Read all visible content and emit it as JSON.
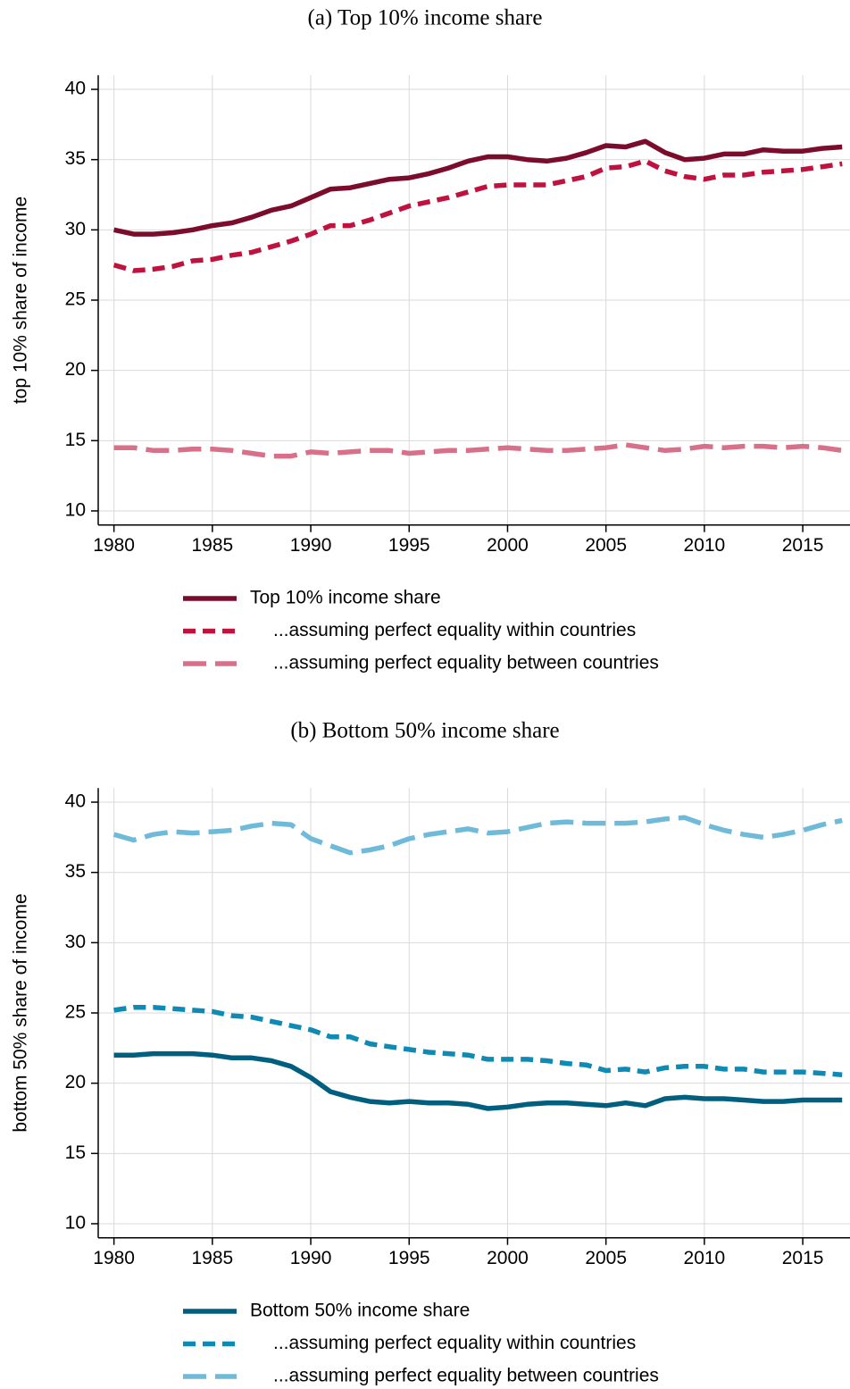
{
  "chart_data": [
    {
      "type": "line",
      "title": "(a) Top 10% income share",
      "y_label": "top 10% share of income",
      "x": [
        1980,
        1981,
        1982,
        1983,
        1984,
        1985,
        1986,
        1987,
        1988,
        1989,
        1990,
        1991,
        1992,
        1993,
        1994,
        1995,
        1996,
        1997,
        1998,
        1999,
        2000,
        2001,
        2002,
        2003,
        2004,
        2005,
        2006,
        2007,
        2008,
        2009,
        2010,
        2011,
        2012,
        2013,
        2014,
        2015,
        2016,
        2017
      ],
      "series": [
        {
          "name": "Top 10% income share",
          "color": "#7b0c2b",
          "style": "solid",
          "values": [
            30.0,
            29.7,
            29.7,
            29.8,
            30.0,
            30.3,
            30.5,
            30.9,
            31.4,
            31.7,
            32.3,
            32.9,
            33.0,
            33.3,
            33.6,
            33.7,
            34.0,
            34.4,
            34.9,
            35.2,
            35.2,
            35.0,
            34.9,
            35.1,
            35.5,
            36.0,
            35.9,
            36.3,
            35.5,
            35.0,
            35.1,
            35.4,
            35.4,
            35.7,
            35.6,
            35.6,
            35.8,
            35.9
          ]
        },
        {
          "name": "...assuming perfect equality within countries",
          "color": "#c0123f",
          "style": "short-dash",
          "values": [
            27.5,
            27.1,
            27.2,
            27.4,
            27.8,
            27.9,
            28.2,
            28.4,
            28.8,
            29.2,
            29.7,
            30.3,
            30.3,
            30.7,
            31.2,
            31.7,
            32.0,
            32.3,
            32.7,
            33.1,
            33.2,
            33.2,
            33.2,
            33.5,
            33.8,
            34.4,
            34.5,
            34.9,
            34.2,
            33.8,
            33.6,
            33.9,
            33.9,
            34.1,
            34.2,
            34.3,
            34.5,
            34.7
          ]
        },
        {
          "name": "...assuming perfect equality between countries",
          "color": "#d8708a",
          "style": "long-dash",
          "values": [
            14.5,
            14.5,
            14.3,
            14.3,
            14.4,
            14.4,
            14.3,
            14.1,
            13.9,
            13.9,
            14.2,
            14.1,
            14.2,
            14.3,
            14.3,
            14.1,
            14.2,
            14.3,
            14.3,
            14.4,
            14.5,
            14.4,
            14.3,
            14.3,
            14.4,
            14.5,
            14.7,
            14.5,
            14.3,
            14.4,
            14.6,
            14.5,
            14.6,
            14.6,
            14.5,
            14.6,
            14.5,
            14.3
          ]
        }
      ],
      "xlim": [
        1979.2,
        2017.4
      ],
      "xticks": [
        1980,
        1985,
        1990,
        1995,
        2000,
        2005,
        2010,
        2015
      ],
      "ylim": [
        9,
        41
      ],
      "yticks": [
        10,
        15,
        20,
        25,
        30,
        35,
        40
      ],
      "grid": true,
      "legend": "bottom"
    },
    {
      "type": "line",
      "title": "(b) Bottom 50% income share",
      "y_label": "bottom 50% share of income",
      "x": [
        1980,
        1981,
        1982,
        1983,
        1984,
        1985,
        1986,
        1987,
        1988,
        1989,
        1990,
        1991,
        1992,
        1993,
        1994,
        1995,
        1996,
        1997,
        1998,
        1999,
        2000,
        2001,
        2002,
        2003,
        2004,
        2005,
        2006,
        2007,
        2008,
        2009,
        2010,
        2011,
        2012,
        2013,
        2014,
        2015,
        2016,
        2017
      ],
      "series": [
        {
          "name": "Bottom 50% income share",
          "color": "#005f7f",
          "style": "solid",
          "values": [
            22.0,
            22.0,
            22.1,
            22.1,
            22.1,
            22.0,
            21.8,
            21.8,
            21.6,
            21.2,
            20.4,
            19.4,
            19.0,
            18.7,
            18.6,
            18.7,
            18.6,
            18.6,
            18.5,
            18.2,
            18.3,
            18.5,
            18.6,
            18.6,
            18.5,
            18.4,
            18.6,
            18.4,
            18.9,
            19.0,
            18.9,
            18.9,
            18.8,
            18.7,
            18.7,
            18.8,
            18.8,
            18.8
          ]
        },
        {
          "name": "...assuming perfect equality within countries",
          "color": "#0f8ab5",
          "style": "short-dash",
          "values": [
            25.2,
            25.4,
            25.4,
            25.3,
            25.2,
            25.1,
            24.8,
            24.7,
            24.4,
            24.1,
            23.8,
            23.3,
            23.3,
            22.8,
            22.6,
            22.4,
            22.2,
            22.1,
            22.0,
            21.7,
            21.7,
            21.7,
            21.6,
            21.4,
            21.3,
            20.9,
            21.0,
            20.8,
            21.1,
            21.2,
            21.2,
            21.0,
            21.0,
            20.8,
            20.8,
            20.8,
            20.7,
            20.6
          ]
        },
        {
          "name": "...assuming perfect equality between countries",
          "color": "#6fbad8",
          "style": "long-dash",
          "values": [
            37.7,
            37.3,
            37.7,
            37.9,
            37.8,
            37.9,
            38.0,
            38.3,
            38.5,
            38.4,
            37.4,
            36.9,
            36.4,
            36.6,
            36.9,
            37.4,
            37.7,
            37.9,
            38.1,
            37.8,
            37.9,
            38.2,
            38.5,
            38.6,
            38.5,
            38.5,
            38.5,
            38.6,
            38.8,
            38.9,
            38.4,
            38.0,
            37.7,
            37.5,
            37.7,
            38.0,
            38.4,
            38.7
          ]
        }
      ],
      "xlim": [
        1979.2,
        2017.4
      ],
      "xticks": [
        1980,
        1985,
        1990,
        1995,
        2000,
        2005,
        2010,
        2015
      ],
      "ylim": [
        9,
        41
      ],
      "yticks": [
        10,
        15,
        20,
        25,
        30,
        35,
        40
      ],
      "grid": true,
      "legend": "bottom"
    }
  ]
}
